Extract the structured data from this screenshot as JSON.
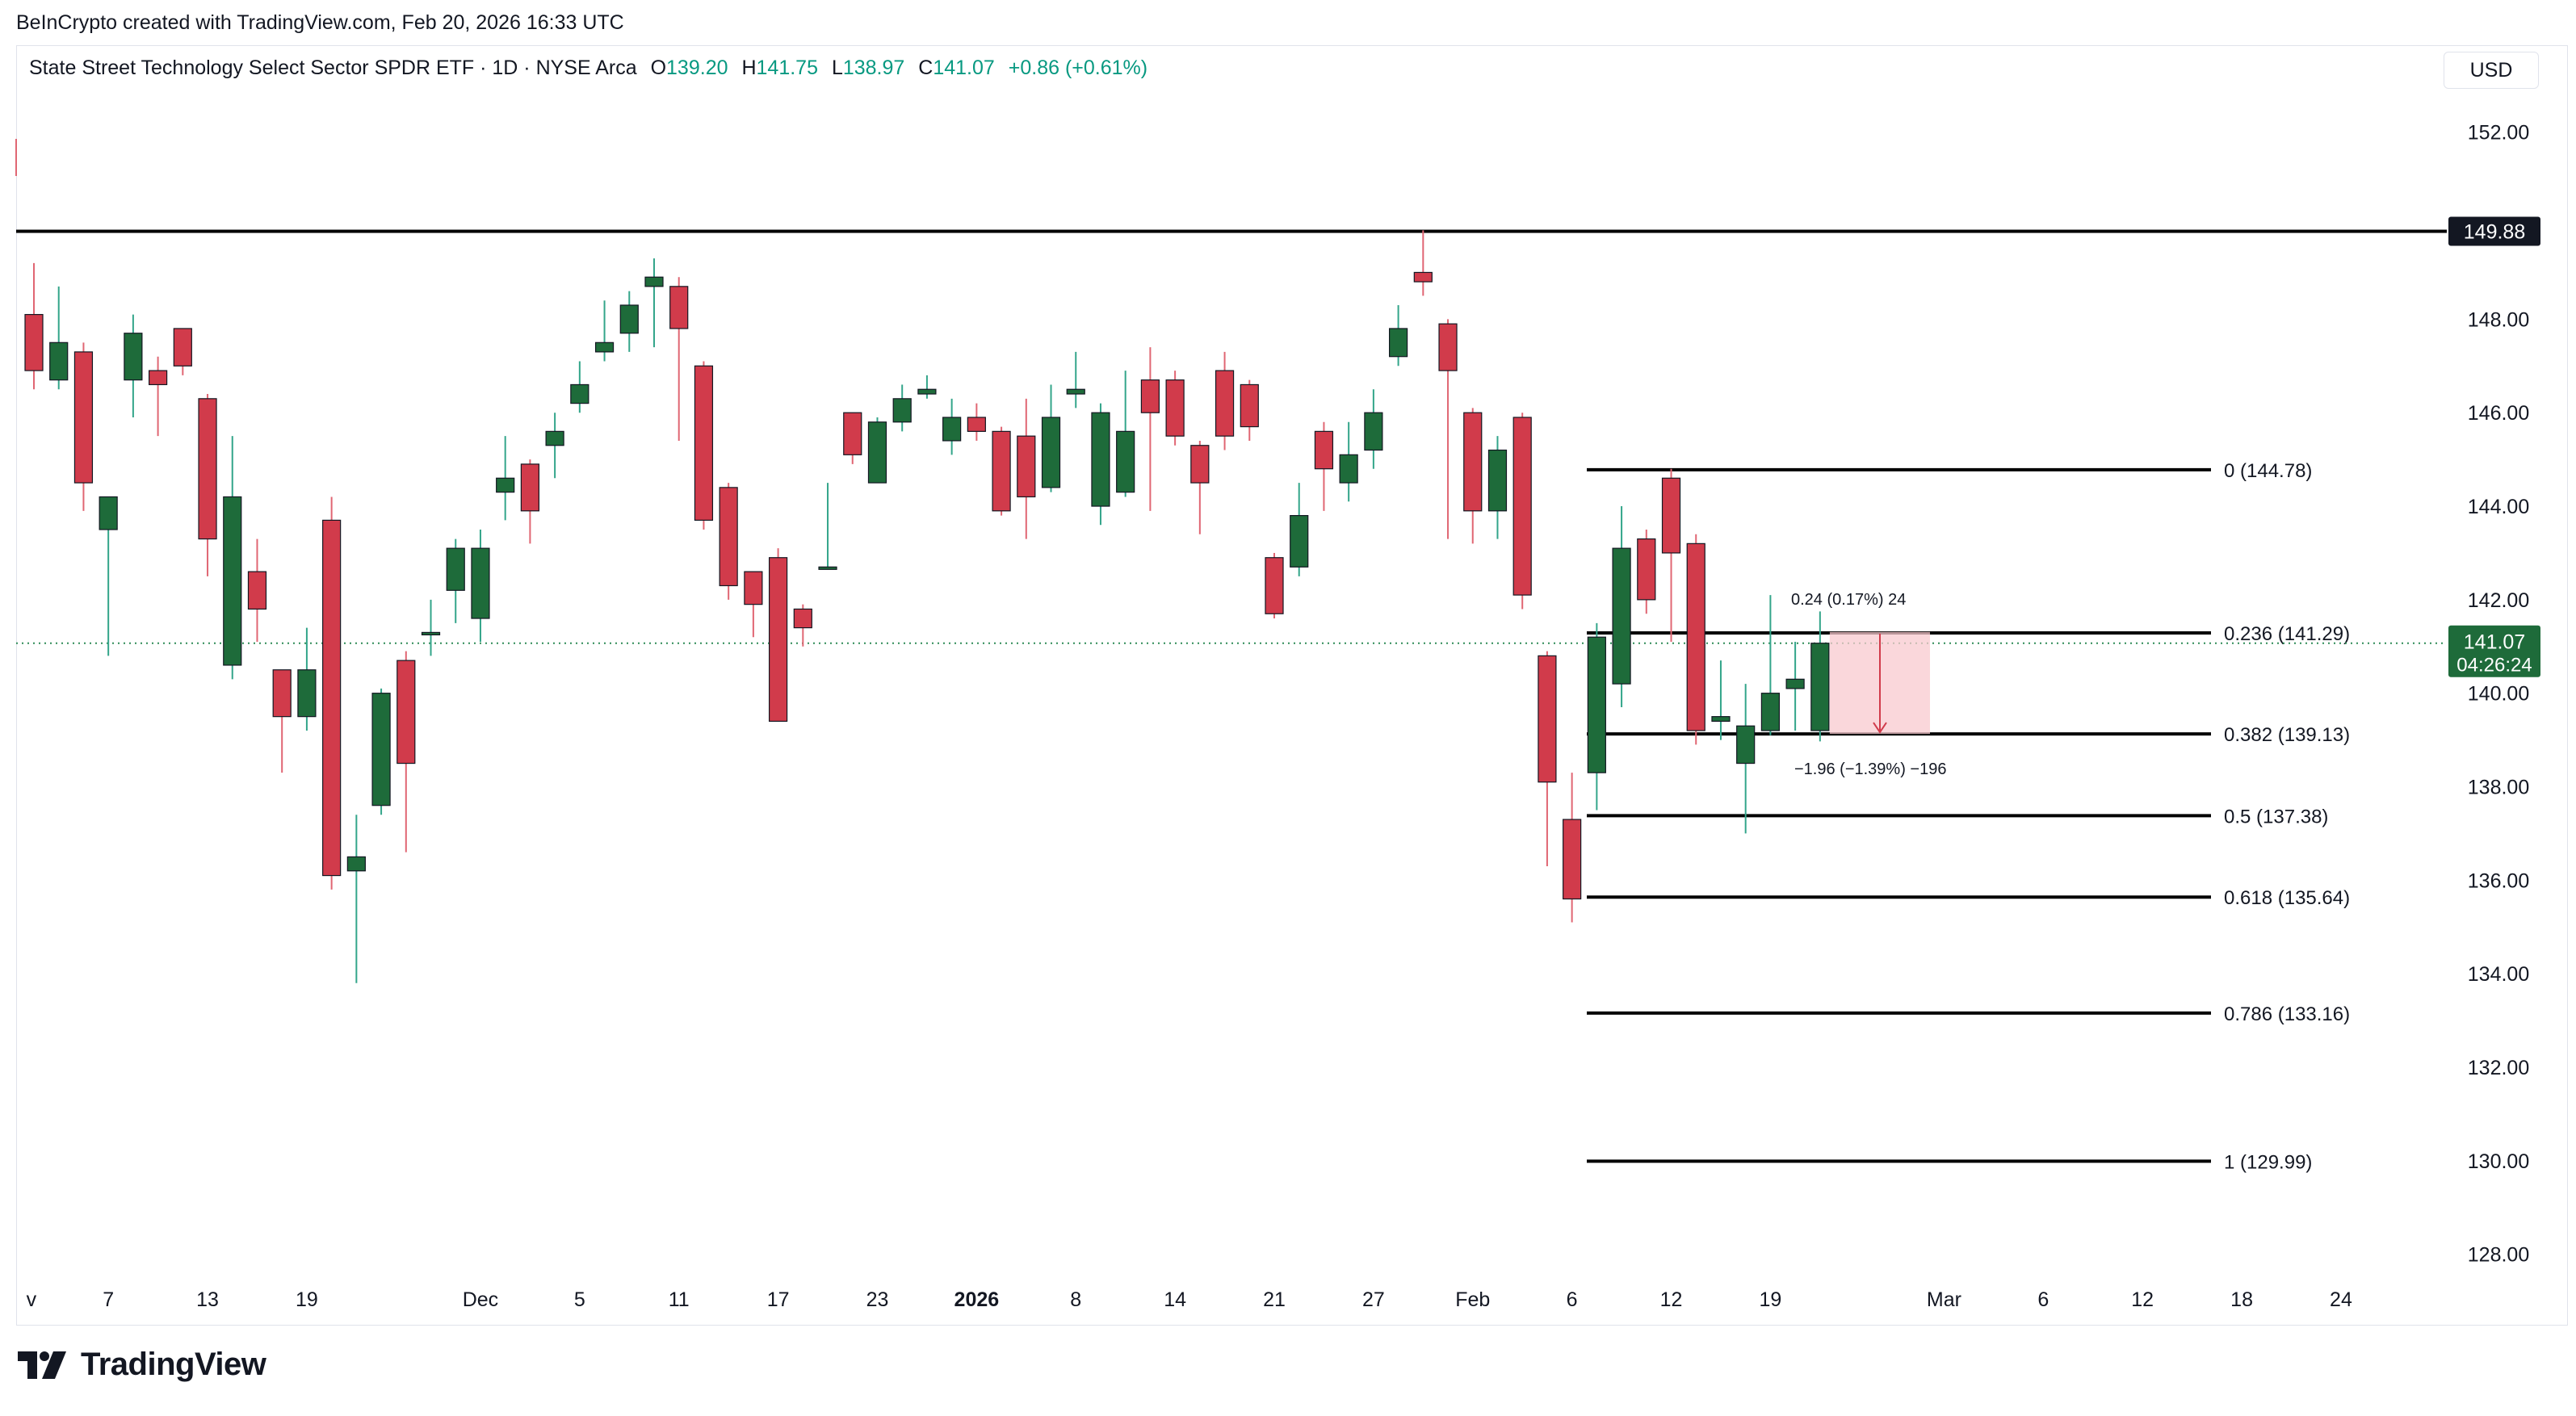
{
  "caption": "BeInCrypto created with TradingView.com, Feb 20, 2026 16:33 UTC",
  "legend": {
    "title": "State Street Technology Select Sector SPDR ETF · 1D · NYSE Arca",
    "o_label": "O",
    "o_value": "139.20",
    "h_label": "H",
    "h_value": "141.75",
    "l_label": "L",
    "l_value": "138.97",
    "c_label": "C",
    "c_value": "141.07",
    "change": "+0.86 (+0.61%)"
  },
  "currency": "USD",
  "brand": "TradingView",
  "colors": {
    "up": "#1e6b3a",
    "down": "#d13b4b",
    "upWick": "#33a58a",
    "downWick": "#e06673",
    "last": "#1e6b3a",
    "fibLine": "#000000",
    "measure": "#f8c9cf"
  },
  "chart_data": {
    "type": "candlestick",
    "ylim": [
      127.2,
      153.1
    ],
    "y_ticks": [
      "152.00",
      "150.00",
      "148.00",
      "146.00",
      "144.00",
      "142.00",
      "140.00",
      "138.00",
      "136.00",
      "134.00",
      "132.00",
      "130.00",
      "128.00"
    ],
    "x_ticks": [
      {
        "label": "v",
        "idx": -0.1
      },
      {
        "label": "7",
        "idx": 3
      },
      {
        "label": "13",
        "idx": 7
      },
      {
        "label": "19",
        "idx": 11
      },
      {
        "label": "Dec",
        "idx": 18
      },
      {
        "label": "5",
        "idx": 22
      },
      {
        "label": "11",
        "idx": 26
      },
      {
        "label": "17",
        "idx": 30
      },
      {
        "label": "23",
        "idx": 34
      },
      {
        "label": "2026",
        "idx": 38,
        "bold": true
      },
      {
        "label": "8",
        "idx": 42
      },
      {
        "label": "14",
        "idx": 46
      },
      {
        "label": "21",
        "idx": 50
      },
      {
        "label": "27",
        "idx": 54
      },
      {
        "label": "Feb",
        "idx": 58
      },
      {
        "label": "6",
        "idx": 62
      },
      {
        "label": "12",
        "idx": 66
      },
      {
        "label": "19",
        "idx": 70
      },
      {
        "label": "Mar",
        "idx": 77
      },
      {
        "label": "6",
        "idx": 81
      },
      {
        "label": "12",
        "idx": 85
      },
      {
        "label": "18",
        "idx": 89
      },
      {
        "label": "24",
        "idx": 93
      }
    ],
    "candles": [
      [
        148.1,
        146.9,
        149.2,
        146.5
      ],
      [
        146.7,
        147.5,
        148.7,
        146.5
      ],
      [
        147.3,
        144.5,
        147.5,
        143.9
      ],
      [
        143.5,
        144.2,
        144.2,
        140.8
      ],
      [
        146.7,
        147.7,
        148.1,
        145.9
      ],
      [
        146.9,
        146.6,
        147.2,
        145.5
      ],
      [
        147.8,
        147.0,
        147.8,
        146.8
      ],
      [
        146.3,
        143.3,
        146.4,
        142.5
      ],
      [
        140.6,
        144.2,
        145.5,
        140.3
      ],
      [
        142.6,
        141.8,
        143.3,
        141.1
      ],
      [
        140.5,
        139.5,
        140.5,
        138.3
      ],
      [
        139.5,
        140.5,
        141.4,
        139.2
      ],
      [
        143.7,
        136.1,
        144.2,
        135.8
      ],
      [
        136.2,
        136.5,
        137.4,
        133.8
      ],
      [
        137.6,
        140.0,
        140.1,
        137.4
      ],
      [
        140.7,
        138.5,
        140.9,
        136.6
      ],
      [
        141.3,
        141.3,
        142.0,
        140.8
      ],
      [
        142.2,
        143.1,
        143.3,
        141.5
      ],
      [
        141.6,
        143.1,
        143.5,
        141.1
      ],
      [
        144.3,
        144.6,
        145.5,
        143.7
      ],
      [
        144.9,
        143.9,
        145.0,
        143.2
      ],
      [
        145.3,
        145.6,
        146.0,
        144.6
      ],
      [
        146.2,
        146.6,
        147.1,
        146.0
      ],
      [
        147.3,
        147.5,
        148.4,
        147.1
      ],
      [
        147.7,
        148.3,
        148.6,
        147.3
      ],
      [
        148.7,
        148.9,
        149.3,
        147.4
      ],
      [
        148.7,
        147.8,
        148.9,
        145.4
      ],
      [
        147.0,
        143.7,
        147.1,
        143.5
      ],
      [
        144.4,
        142.3,
        144.5,
        142.0
      ],
      [
        142.6,
        141.9,
        142.6,
        141.2
      ],
      [
        142.9,
        139.4,
        143.1,
        139.4
      ],
      [
        141.8,
        141.4,
        141.9,
        141.0
      ],
      [
        142.7,
        142.7,
        144.5,
        142.7
      ],
      [
        146.0,
        145.1,
        146.0,
        144.9
      ],
      [
        144.5,
        145.8,
        145.9,
        144.6
      ],
      [
        145.8,
        146.3,
        146.6,
        145.6
      ],
      [
        146.4,
        146.5,
        146.8,
        146.3
      ],
      [
        145.4,
        145.9,
        146.3,
        145.1
      ],
      [
        145.9,
        145.6,
        146.2,
        145.4
      ],
      [
        145.6,
        143.9,
        145.7,
        143.8
      ],
      [
        145.5,
        144.2,
        146.3,
        143.3
      ],
      [
        144.4,
        145.9,
        146.6,
        144.3
      ],
      [
        146.4,
        146.5,
        147.3,
        146.1
      ],
      [
        144.0,
        146.0,
        146.2,
        143.6
      ],
      [
        144.3,
        145.6,
        146.9,
        144.2
      ],
      [
        146.7,
        146.0,
        147.4,
        143.9
      ],
      [
        146.7,
        145.5,
        146.9,
        145.3
      ],
      [
        145.3,
        144.5,
        145.4,
        143.4
      ],
      [
        146.9,
        145.5,
        147.3,
        145.2
      ],
      [
        146.6,
        145.7,
        146.7,
        145.4
      ],
      [
        142.9,
        141.7,
        143.0,
        141.6
      ],
      [
        142.7,
        143.8,
        144.5,
        142.5
      ],
      [
        145.6,
        144.8,
        145.8,
        143.9
      ],
      [
        144.5,
        145.1,
        145.8,
        144.1
      ],
      [
        145.2,
        146.0,
        146.5,
        144.8
      ],
      [
        147.2,
        147.8,
        148.3,
        147.0
      ],
      [
        149.0,
        148.8,
        149.9,
        148.5
      ],
      [
        147.9,
        146.9,
        148.0,
        143.3
      ],
      [
        146.0,
        143.9,
        146.1,
        143.2
      ],
      [
        143.9,
        145.2,
        145.5,
        143.3
      ],
      [
        145.9,
        142.1,
        146.0,
        141.8
      ],
      [
        140.8,
        138.1,
        140.9,
        136.3
      ],
      [
        137.3,
        135.6,
        138.3,
        135.1
      ],
      [
        138.3,
        141.2,
        141.5,
        137.5
      ],
      [
        140.2,
        143.1,
        144.0,
        139.7
      ],
      [
        143.3,
        142.0,
        143.5,
        141.7
      ],
      [
        144.6,
        143.0,
        144.8,
        141.1
      ],
      [
        143.2,
        139.2,
        143.4,
        138.9
      ],
      [
        139.4,
        139.5,
        140.7,
        139.0
      ],
      [
        138.5,
        139.3,
        140.2,
        137.0
      ],
      [
        139.2,
        140.0,
        142.1,
        139.1
      ],
      [
        140.1,
        140.3,
        141.1,
        139.2
      ],
      [
        139.2,
        141.07,
        141.75,
        138.97
      ]
    ],
    "last_price": "141.07",
    "countdown": "04:26:24",
    "resistance": {
      "value": 149.88,
      "label": "149.88"
    },
    "fib_levels": [
      {
        "value": 144.78,
        "label": "0 (144.78)"
      },
      {
        "value": 141.29,
        "label": "0.236 (141.29)"
      },
      {
        "value": 139.13,
        "label": "0.382 (139.13)"
      },
      {
        "value": 137.38,
        "label": "0.5 (137.38)"
      },
      {
        "value": 135.64,
        "label": "0.618 (135.64)"
      },
      {
        "value": 133.16,
        "label": "0.786 (133.16)"
      },
      {
        "value": 129.99,
        "label": "1 (129.99)"
      }
    ],
    "measure": {
      "top": 141.31,
      "bottom": 139.13,
      "start_idx": 72,
      "end_idx": 76,
      "upper_label": "0.24 (0.17%) 24",
      "lower_label": "−1.96 (−1.39%) −196"
    }
  }
}
